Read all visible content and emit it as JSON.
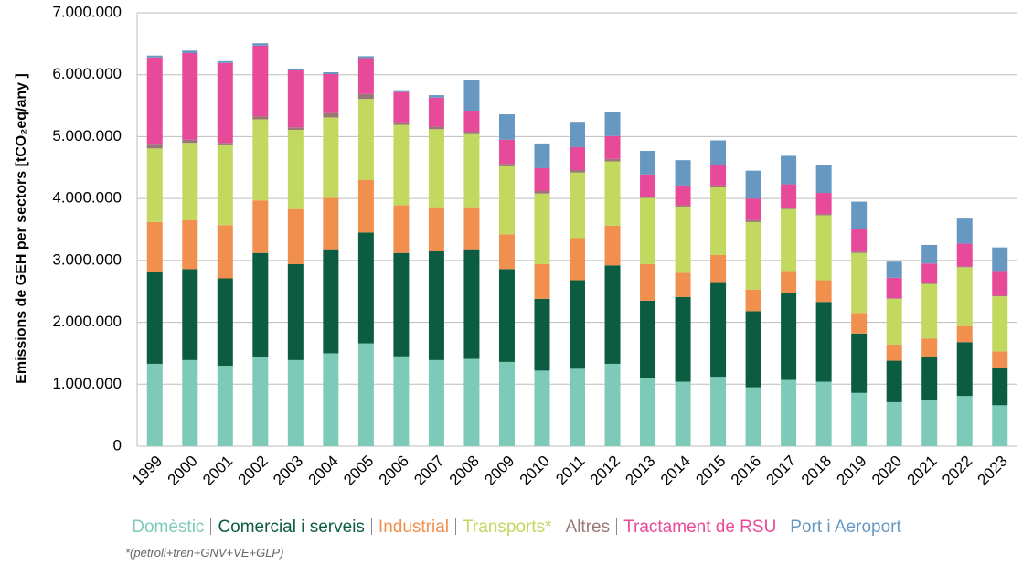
{
  "chart_data": {
    "type": "stacked_bar",
    "y_label": "Emissions de GEH per sectors [tCO₂eq/any ]",
    "note": "*(petroli+tren+GNV+VE+GLP)",
    "categories": [
      "1999",
      "2000",
      "2001",
      "2002",
      "2003",
      "2004",
      "2005",
      "2006",
      "2007",
      "2008",
      "2009",
      "2010",
      "2011",
      "2012",
      "2013",
      "2014",
      "2015",
      "2016",
      "2017",
      "2018",
      "2019",
      "2020",
      "2021",
      "2022",
      "2023"
    ],
    "ylim": [
      0,
      7000000
    ],
    "yticks": [
      0,
      {
        "value": 1000000,
        "label": "1.000.000"
      },
      {
        "value": 2000000,
        "label": "2.000.000"
      },
      {
        "value": 3000000,
        "label": "3.000.000"
      },
      {
        "value": 4000000,
        "label": "4.000.000"
      },
      {
        "value": 5000000,
        "label": "5.000.000"
      },
      {
        "value": 6000000,
        "label": "6.000.000"
      },
      {
        "value": 7000000,
        "label": "7.000.000"
      }
    ],
    "grid": true,
    "series": [
      {
        "name": "Domèstic",
        "color": "#7ecab8",
        "values": [
          1330000,
          1390000,
          1300000,
          1440000,
          1390000,
          1500000,
          1660000,
          1450000,
          1390000,
          1410000,
          1360000,
          1220000,
          1250000,
          1330000,
          1100000,
          1040000,
          1120000,
          950000,
          1070000,
          1040000,
          860000,
          710000,
          750000,
          810000,
          660000
        ]
      },
      {
        "name": "Comercial i serveis",
        "color": "#0b5c40",
        "values": [
          1490000,
          1470000,
          1410000,
          1680000,
          1550000,
          1680000,
          1790000,
          1670000,
          1770000,
          1770000,
          1500000,
          1160000,
          1430000,
          1590000,
          1250000,
          1370000,
          1530000,
          1230000,
          1400000,
          1290000,
          960000,
          670000,
          690000,
          870000,
          600000
        ]
      },
      {
        "name": "Industrial",
        "color": "#f08f4e",
        "values": [
          800000,
          790000,
          860000,
          850000,
          890000,
          830000,
          850000,
          770000,
          700000,
          680000,
          560000,
          560000,
          680000,
          640000,
          590000,
          390000,
          440000,
          350000,
          360000,
          350000,
          330000,
          260000,
          300000,
          260000,
          270000
        ]
      },
      {
        "name": "Transports*",
        "color": "#c2d85e",
        "values": [
          1190000,
          1250000,
          1290000,
          1310000,
          1280000,
          1300000,
          1310000,
          1300000,
          1260000,
          1180000,
          1100000,
          1140000,
          1060000,
          1040000,
          1070000,
          1070000,
          1100000,
          1090000,
          1000000,
          1050000,
          970000,
          740000,
          880000,
          950000,
          890000
        ]
      },
      {
        "name": "Altres",
        "color": "#9a7777",
        "values": [
          60000,
          50000,
          40000,
          50000,
          40000,
          70000,
          80000,
          40000,
          40000,
          40000,
          40000,
          40000,
          40000,
          40000,
          20000,
          20000,
          20000,
          30000,
          20000,
          20000,
          20000,
          10000,
          10000,
          10000,
          10000
        ]
      },
      {
        "name": "Tractament de RSU",
        "color": "#e84a9a",
        "values": [
          1410000,
          1400000,
          1290000,
          1140000,
          920000,
          630000,
          580000,
          490000,
          470000,
          340000,
          390000,
          370000,
          370000,
          370000,
          360000,
          320000,
          330000,
          350000,
          380000,
          340000,
          370000,
          330000,
          320000,
          370000,
          400000
        ]
      },
      {
        "name": "Port i Aeroport",
        "color": "#6798c2",
        "values": [
          30000,
          40000,
          30000,
          40000,
          30000,
          30000,
          30000,
          30000,
          40000,
          500000,
          410000,
          400000,
          410000,
          380000,
          380000,
          410000,
          400000,
          450000,
          460000,
          450000,
          440000,
          260000,
          300000,
          420000,
          380000
        ]
      }
    ]
  }
}
